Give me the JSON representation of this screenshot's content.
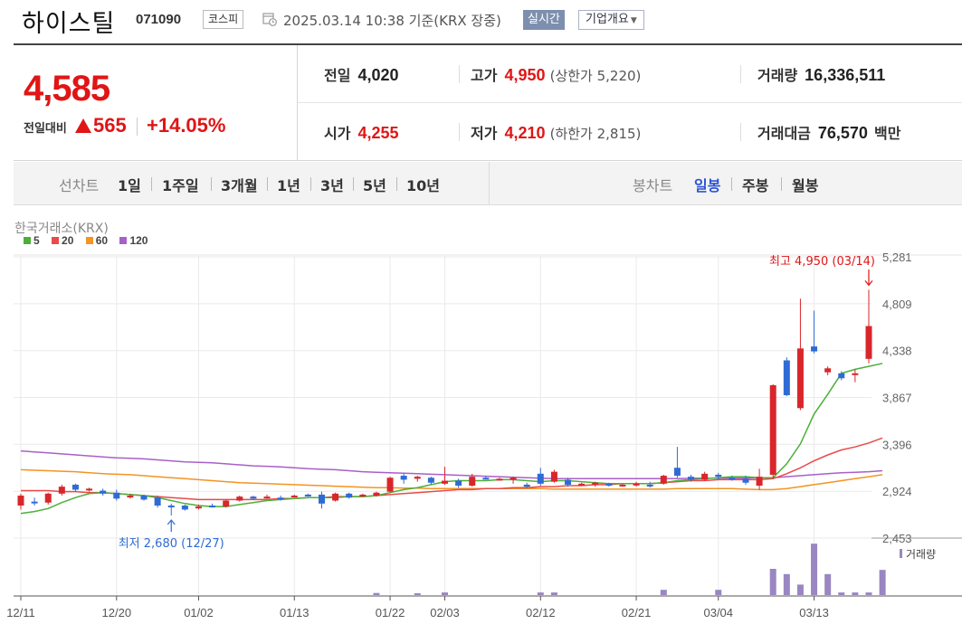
{
  "header": {
    "stock_name": "하이스틸",
    "stock_code": "071090",
    "market_badge": "코스피",
    "calendar_icon": "calendar-clock-icon",
    "timestamp": "2025.03.14 10:38",
    "basis": "기준(KRX 장중)",
    "realtime_label": "실시간",
    "company_overview_label": "기업개요",
    "dropdown_icon": "chevron-down-icon"
  },
  "price": {
    "current": "4,585",
    "change_label": "전일대비",
    "change_amount": "565",
    "change_percent": "+14.05%",
    "up_icon": "triangle-up-icon",
    "up_color": "#e01515"
  },
  "stats": {
    "prev_close_label": "전일",
    "prev_close": "4,020",
    "high_label": "고가",
    "high": "4,950",
    "upper_limit": "(상한가 5,220)",
    "volume_label": "거래량",
    "volume": "16,336,511",
    "open_label": "시가",
    "open": "4,255",
    "low_label": "저가",
    "low": "4,210",
    "lower_limit": "(하한가 2,815)",
    "trade_value_label": "거래대금",
    "trade_value": "76,570",
    "trade_value_unit": "백만"
  },
  "tabs": {
    "line_chart_label": "선차트",
    "periods": [
      "1일",
      "1주일",
      "3개월",
      "1년",
      "3년",
      "5년",
      "10년"
    ],
    "candle_chart_label": "봉차트",
    "candle_periods": [
      "일봉",
      "주봉",
      "월봉"
    ],
    "active_candle": "일봉"
  },
  "chart_data": {
    "type": "candlestick",
    "exchange_label": "한국거래소(KRX)",
    "legend": [
      {
        "name": "5",
        "color": "#4caf3a"
      },
      {
        "name": "20",
        "color": "#e94a4a"
      },
      {
        "name": "60",
        "color": "#f39423"
      },
      {
        "name": "120",
        "color": "#a860c9"
      }
    ],
    "up_color": "#d9262b",
    "down_color": "#2f6bd5",
    "y_ticks": [
      "5,281",
      "4,809",
      "4,338",
      "3,867",
      "3,396",
      "2,924",
      "2,453"
    ],
    "ylim": [
      2453,
      5281
    ],
    "x_ticks": [
      "12/11",
      "12/20",
      "01/02",
      "01/13",
      "01/22",
      "02/03",
      "02/12",
      "02/21",
      "03/04",
      "03/13"
    ],
    "high_annotation": "최고 4,950 (03/14)",
    "low_annotation": "최저 2,680 (12/27)",
    "volume_label": "거래량",
    "candles": [
      {
        "d": "12/11",
        "o": 2780,
        "h": 2900,
        "l": 2740,
        "c": 2880
      },
      {
        "d": "12/12",
        "o": 2820,
        "h": 2860,
        "l": 2780,
        "c": 2810
      },
      {
        "d": "12/13",
        "o": 2810,
        "h": 2910,
        "l": 2790,
        "c": 2900
      },
      {
        "d": "12/16",
        "o": 2900,
        "h": 2990,
        "l": 2880,
        "c": 2970
      },
      {
        "d": "12/17",
        "o": 2990,
        "h": 3000,
        "l": 2920,
        "c": 2940
      },
      {
        "d": "12/18",
        "o": 2940,
        "h": 2960,
        "l": 2920,
        "c": 2950
      },
      {
        "d": "12/19",
        "o": 2930,
        "h": 2950,
        "l": 2880,
        "c": 2900
      },
      {
        "d": "12/20",
        "o": 2910,
        "h": 2940,
        "l": 2830,
        "c": 2850
      },
      {
        "d": "12/23",
        "o": 2870,
        "h": 2900,
        "l": 2850,
        "c": 2880
      },
      {
        "d": "12/24",
        "o": 2880,
        "h": 2890,
        "l": 2830,
        "c": 2840
      },
      {
        "d": "12/26",
        "o": 2860,
        "h": 2880,
        "l": 2760,
        "c": 2780
      },
      {
        "d": "12/27",
        "o": 2780,
        "h": 2800,
        "l": 2680,
        "c": 2770
      },
      {
        "d": "12/30",
        "o": 2780,
        "h": 2790,
        "l": 2730,
        "c": 2740
      },
      {
        "d": "01/02",
        "o": 2760,
        "h": 2790,
        "l": 2740,
        "c": 2770
      },
      {
        "d": "01/03",
        "o": 2780,
        "h": 2800,
        "l": 2760,
        "c": 2770
      },
      {
        "d": "01/06",
        "o": 2770,
        "h": 2840,
        "l": 2760,
        "c": 2830
      },
      {
        "d": "01/07",
        "o": 2830,
        "h": 2880,
        "l": 2820,
        "c": 2870
      },
      {
        "d": "01/08",
        "o": 2870,
        "h": 2880,
        "l": 2840,
        "c": 2850
      },
      {
        "d": "01/09",
        "o": 2860,
        "h": 2890,
        "l": 2850,
        "c": 2870
      },
      {
        "d": "01/10",
        "o": 2860,
        "h": 2880,
        "l": 2830,
        "c": 2850
      },
      {
        "d": "01/13",
        "o": 2880,
        "h": 2890,
        "l": 2860,
        "c": 2880
      },
      {
        "d": "01/14",
        "o": 2890,
        "h": 2900,
        "l": 2870,
        "c": 2880
      },
      {
        "d": "01/15",
        "o": 2890,
        "h": 2920,
        "l": 2750,
        "c": 2800
      },
      {
        "d": "01/16",
        "o": 2830,
        "h": 2910,
        "l": 2820,
        "c": 2900
      },
      {
        "d": "01/17",
        "o": 2900,
        "h": 2910,
        "l": 2850,
        "c": 2860
      },
      {
        "d": "01/20",
        "o": 2880,
        "h": 2900,
        "l": 2870,
        "c": 2890
      },
      {
        "d": "01/21",
        "o": 2880,
        "h": 2920,
        "l": 2870,
        "c": 2910
      },
      {
        "d": "01/22",
        "o": 2920,
        "h": 3070,
        "l": 2910,
        "c": 3060
      },
      {
        "d": "01/23",
        "o": 3080,
        "h": 3100,
        "l": 3000,
        "c": 3040
      },
      {
        "d": "01/24",
        "o": 3050,
        "h": 3080,
        "l": 3020,
        "c": 3070
      },
      {
        "d": "01/31",
        "o": 3060,
        "h": 3070,
        "l": 2990,
        "c": 3010
      },
      {
        "d": "02/03",
        "o": 3000,
        "h": 3170,
        "l": 2990,
        "c": 3030
      },
      {
        "d": "02/04",
        "o": 3030,
        "h": 3050,
        "l": 2960,
        "c": 2980
      },
      {
        "d": "02/05",
        "o": 2980,
        "h": 3100,
        "l": 2970,
        "c": 3070
      },
      {
        "d": "02/06",
        "o": 3060,
        "h": 3080,
        "l": 3040,
        "c": 3050
      },
      {
        "d": "02/07",
        "o": 3050,
        "h": 3060,
        "l": 3030,
        "c": 3050
      },
      {
        "d": "02/10",
        "o": 3040,
        "h": 3070,
        "l": 3000,
        "c": 3060
      },
      {
        "d": "02/11",
        "o": 2990,
        "h": 3010,
        "l": 2960,
        "c": 2970
      },
      {
        "d": "02/12",
        "o": 3100,
        "h": 3160,
        "l": 2980,
        "c": 3000
      },
      {
        "d": "02/13",
        "o": 3020,
        "h": 3140,
        "l": 3010,
        "c": 3120
      },
      {
        "d": "02/14",
        "o": 3040,
        "h": 3060,
        "l": 2970,
        "c": 2990
      },
      {
        "d": "02/17",
        "o": 2990,
        "h": 3010,
        "l": 2980,
        "c": 3000
      },
      {
        "d": "02/18",
        "o": 2990,
        "h": 3020,
        "l": 2970,
        "c": 3010
      },
      {
        "d": "02/19",
        "o": 3000,
        "h": 3010,
        "l": 2970,
        "c": 2980
      },
      {
        "d": "02/20",
        "o": 2990,
        "h": 3000,
        "l": 2970,
        "c": 2990
      },
      {
        "d": "02/21",
        "o": 2990,
        "h": 3020,
        "l": 2970,
        "c": 3000
      },
      {
        "d": "02/24",
        "o": 2990,
        "h": 3020,
        "l": 2960,
        "c": 2980
      },
      {
        "d": "02/25",
        "o": 3000,
        "h": 3090,
        "l": 2990,
        "c": 3080
      },
      {
        "d": "02/26",
        "o": 3160,
        "h": 3370,
        "l": 3060,
        "c": 3080
      },
      {
        "d": "02/27",
        "o": 3070,
        "h": 3090,
        "l": 3020,
        "c": 3040
      },
      {
        "d": "02/28",
        "o": 3040,
        "h": 3120,
        "l": 3030,
        "c": 3100
      },
      {
        "d": "03/04",
        "o": 3090,
        "h": 3110,
        "l": 3040,
        "c": 3070
      },
      {
        "d": "03/05",
        "o": 3060,
        "h": 3080,
        "l": 3030,
        "c": 3050
      },
      {
        "d": "03/06",
        "o": 3050,
        "h": 3080,
        "l": 2990,
        "c": 3010
      },
      {
        "d": "03/07",
        "o": 2980,
        "h": 3150,
        "l": 2940,
        "c": 3070
      },
      {
        "d": "03/10",
        "o": 3090,
        "h": 4000,
        "l": 3050,
        "c": 3990
      },
      {
        "d": "03/11",
        "o": 4240,
        "h": 4270,
        "l": 3880,
        "c": 3890
      },
      {
        "d": "03/12",
        "o": 3760,
        "h": 4860,
        "l": 3740,
        "c": 4360
      },
      {
        "d": "03/13",
        "o": 4380,
        "h": 4740,
        "l": 4310,
        "c": 4330
      },
      {
        "d": "03/14a",
        "o": 4120,
        "h": 4180,
        "l": 4090,
        "c": 4160
      },
      {
        "d": "03/14b",
        "o": 4110,
        "h": 4130,
        "l": 4040,
        "c": 4060
      },
      {
        "d": "03/14c",
        "o": 4100,
        "h": 4150,
        "l": 4020,
        "c": 4110
      },
      {
        "d": "03/14",
        "o": 4255,
        "h": 4950,
        "l": 4210,
        "c": 4585
      }
    ],
    "volume": [
      0,
      0,
      0,
      0,
      0,
      0,
      0,
      0,
      0,
      0,
      0,
      0,
      0,
      0,
      0,
      0,
      0,
      0,
      0,
      0,
      0,
      0,
      0,
      0,
      0,
      0,
      0.04,
      0,
      0,
      0.02,
      0,
      0.05,
      0,
      0,
      0,
      0,
      0,
      0,
      0.05,
      0.05,
      0,
      0,
      0,
      0,
      0,
      0,
      0,
      0.1,
      0,
      0,
      0,
      0.1,
      0,
      0,
      0,
      0.5,
      0.4,
      0.2,
      0.98,
      0.4,
      0.05,
      0.05,
      0.05,
      0.48
    ],
    "ma5": [
      2700,
      2720,
      2750,
      2810,
      2860,
      2900,
      2910,
      2900,
      2890,
      2880,
      2860,
      2830,
      2800,
      2780,
      2770,
      2770,
      2790,
      2810,
      2830,
      2840,
      2850,
      2860,
      2860,
      2860,
      2870,
      2870,
      2880,
      2910,
      2940,
      2960,
      2990,
      3020,
      3030,
      3030,
      3030,
      3040,
      3040,
      3030,
      3020,
      3030,
      3030,
      3020,
      3010,
      3000,
      3000,
      3000,
      3000,
      3010,
      3030,
      3040,
      3050,
      3060,
      3070,
      3070,
      3060,
      3060,
      3200,
      3400,
      3700,
      3900,
      4110,
      4150,
      4180,
      4210
    ],
    "ma20": [
      2930,
      2930,
      2930,
      2920,
      2920,
      2910,
      2910,
      2900,
      2890,
      2880,
      2870,
      2860,
      2850,
      2840,
      2840,
      2840,
      2840,
      2840,
      2840,
      2850,
      2850,
      2860,
      2860,
      2870,
      2870,
      2870,
      2880,
      2890,
      2900,
      2910,
      2920,
      2930,
      2940,
      2940,
      2950,
      2950,
      2960,
      2960,
      2970,
      2970,
      2980,
      2980,
      2990,
      2990,
      3000,
      3000,
      3000,
      3010,
      3020,
      3030,
      3030,
      3040,
      3040,
      3040,
      3040,
      3050,
      3100,
      3160,
      3230,
      3290,
      3340,
      3370,
      3410,
      3460
    ],
    "ma60": [
      3140,
      3135,
      3130,
      3125,
      3120,
      3110,
      3100,
      3095,
      3090,
      3080,
      3070,
      3060,
      3050,
      3040,
      3030,
      3020,
      3010,
      3005,
      3000,
      2995,
      2990,
      2985,
      2980,
      2975,
      2970,
      2965,
      2960,
      2960,
      2955,
      2955,
      2950,
      2950,
      2950,
      2950,
      2950,
      2950,
      2950,
      2950,
      2950,
      2945,
      2945,
      2945,
      2945,
      2945,
      2945,
      2945,
      2945,
      2945,
      2950,
      2950,
      2950,
      2950,
      2950,
      2945,
      2940,
      2940,
      2950,
      2970,
      2990,
      3010,
      3030,
      3050,
      3070,
      3090
    ],
    "ma120": [
      3330,
      3320,
      3310,
      3300,
      3290,
      3280,
      3270,
      3260,
      3255,
      3250,
      3240,
      3230,
      3220,
      3215,
      3210,
      3200,
      3190,
      3180,
      3175,
      3170,
      3160,
      3150,
      3145,
      3140,
      3130,
      3120,
      3115,
      3110,
      3105,
      3100,
      3095,
      3090,
      3085,
      3080,
      3075,
      3070,
      3065,
      3060,
      3055,
      3050,
      3050,
      3050,
      3050,
      3050,
      3050,
      3050,
      3050,
      3050,
      3050,
      3055,
      3055,
      3055,
      3055,
      3055,
      3060,
      3060,
      3070,
      3080,
      3090,
      3100,
      3110,
      3115,
      3120,
      3130
    ]
  }
}
